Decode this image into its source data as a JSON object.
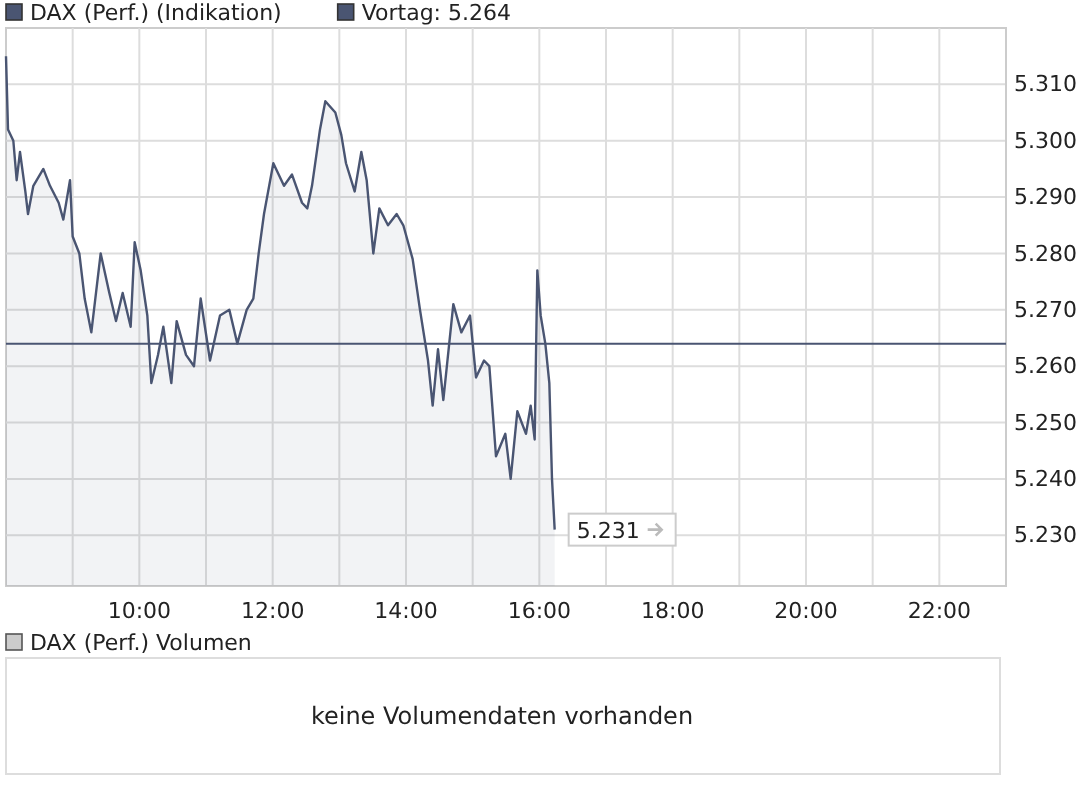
{
  "chart_data": [
    {
      "type": "area",
      "legend": "top left",
      "grid": true,
      "xlim": [
        8,
        23
      ],
      "ylim": [
        5221,
        5320
      ],
      "xticks": [
        {
          "value": 9,
          "label": null
        },
        {
          "value": 10,
          "label": "10:00"
        },
        {
          "value": 11,
          "label": null
        },
        {
          "value": 12,
          "label": "12:00"
        },
        {
          "value": 13,
          "label": null
        },
        {
          "value": 14,
          "label": "14:00"
        },
        {
          "value": 15,
          "label": null
        },
        {
          "value": 16,
          "label": "16:00"
        },
        {
          "value": 17,
          "label": null
        },
        {
          "value": 18,
          "label": "18:00"
        },
        {
          "value": 19,
          "label": null
        },
        {
          "value": 20,
          "label": "20:00"
        },
        {
          "value": 21,
          "label": null
        },
        {
          "value": 22,
          "label": "22:00"
        }
      ],
      "yticks": [
        {
          "value": 5230,
          "label": "5.230"
        },
        {
          "value": 5240,
          "label": "5.240"
        },
        {
          "value": 5250,
          "label": "5.250"
        },
        {
          "value": 5260,
          "label": "5.260"
        },
        {
          "value": 5270,
          "label": "5.270"
        },
        {
          "value": 5280,
          "label": "5.280"
        },
        {
          "value": 5290,
          "label": "5.290"
        },
        {
          "value": 5300,
          "label": "5.300"
        },
        {
          "value": 5310,
          "label": "5.310"
        }
      ],
      "ref_lines": [
        {
          "axis": "y",
          "value": 5264,
          "label": "Vortag: 5.264",
          "color": "#4a5572"
        }
      ],
      "annotations": [
        {
          "text": "5.231",
          "x": 16.23,
          "y": 5231
        }
      ],
      "series": [
        {
          "name": "DAX (Perf.) (Indikation)",
          "color": "#4a5572",
          "x": [
            8.0,
            8.03,
            8.11,
            8.16,
            8.21,
            8.29,
            8.33,
            8.41,
            8.56,
            8.66,
            8.79,
            8.86,
            8.96,
            9.0,
            9.1,
            9.18,
            9.28,
            9.42,
            9.55,
            9.65,
            9.75,
            9.87,
            9.93,
            10.02,
            10.12,
            10.18,
            10.28,
            10.36,
            10.48,
            10.56,
            10.7,
            10.82,
            10.92,
            11.06,
            11.21,
            11.35,
            11.47,
            11.61,
            11.71,
            11.79,
            11.87,
            12.01,
            12.17,
            12.29,
            12.44,
            12.52,
            12.59,
            12.71,
            12.79,
            12.94,
            13.03,
            13.1,
            13.23,
            13.33,
            13.41,
            13.51,
            13.6,
            13.73,
            13.86,
            13.96,
            14.1,
            14.21,
            14.33,
            14.4,
            14.48,
            14.56,
            14.71,
            14.83,
            14.96,
            15.05,
            15.17,
            15.25,
            15.35,
            15.49,
            15.57,
            15.67,
            15.8,
            15.87,
            15.93,
            15.97,
            16.02,
            16.09,
            16.15,
            16.19,
            16.23
          ],
          "values": [
            5315,
            5302,
            5300,
            5293,
            5298,
            5291,
            5287,
            5292,
            5295,
            5292,
            5289,
            5286,
            5293,
            5283,
            5280,
            5272,
            5266,
            5280,
            5273,
            5268,
            5273,
            5267,
            5282,
            5277,
            5269,
            5257,
            5262,
            5267,
            5257,
            5268,
            5262,
            5260,
            5272,
            5261,
            5269,
            5270,
            5264,
            5270,
            5272,
            5280,
            5287,
            5296,
            5292,
            5294,
            5289,
            5288,
            5292,
            5302,
            5307,
            5305,
            5301,
            5296,
            5291,
            5298,
            5293,
            5280,
            5288,
            5285,
            5287,
            5285,
            5279,
            5270,
            5261,
            5253,
            5263,
            5254,
            5271,
            5266,
            5269,
            5258,
            5261,
            5260,
            5244,
            5248,
            5240,
            5252,
            5248,
            5253,
            5247,
            5277,
            5269,
            5264,
            5257,
            5240,
            5231
          ]
        }
      ]
    },
    {
      "type": "other",
      "title": "DAX (Perf.) Volumen",
      "annotations": [
        "keine Volumendaten vorhanden"
      ]
    }
  ]
}
